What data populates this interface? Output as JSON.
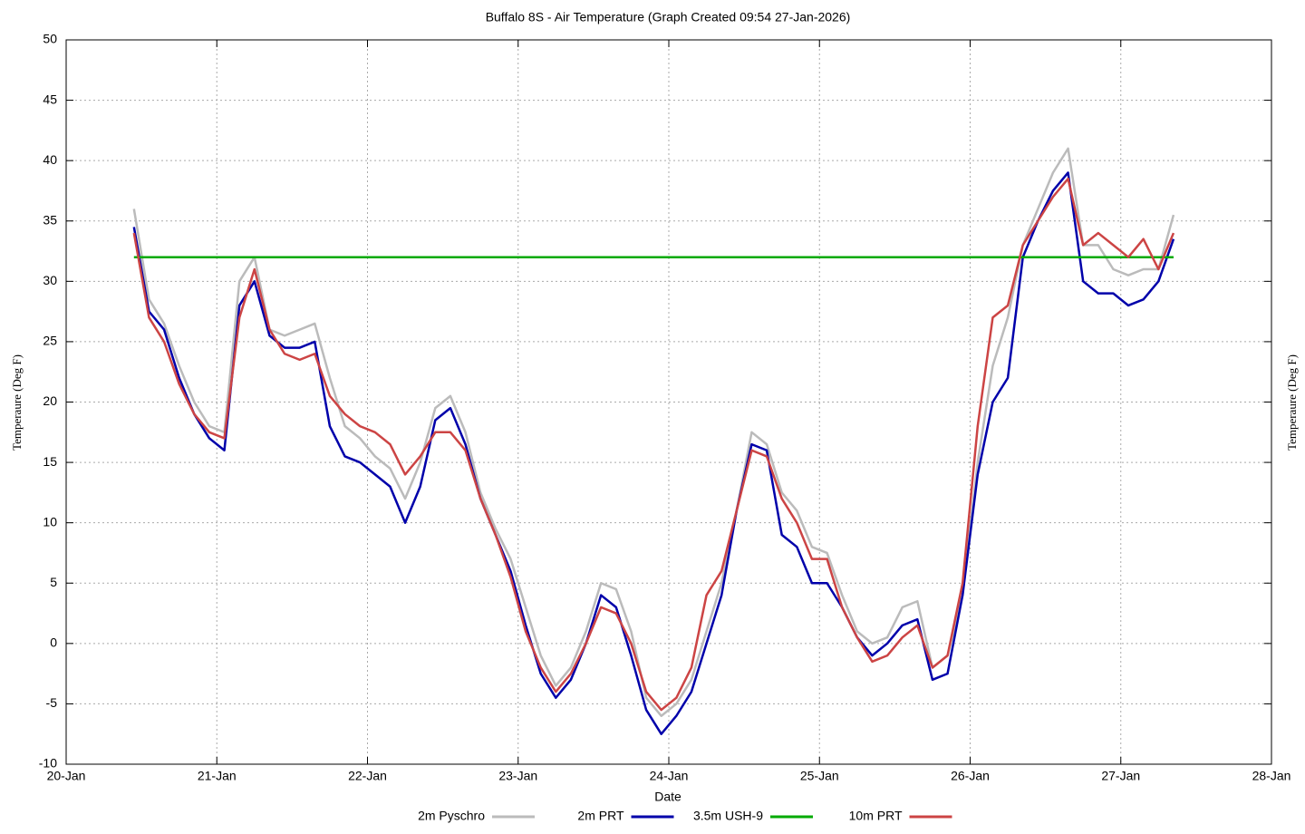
{
  "chart_data": {
    "type": "line",
    "title": "Buffalo 8S - Air Temperature (Graph Created 09:54 27-Jan-2026)",
    "xlabel": "Date",
    "ylabel": "Temperaure (Deg F)",
    "x": [
      20.45,
      20.55,
      20.65,
      20.75,
      20.85,
      20.95,
      21.05,
      21.15,
      21.25,
      21.35,
      21.45,
      21.55,
      21.65,
      21.75,
      21.85,
      21.95,
      22.05,
      22.15,
      22.25,
      22.35,
      22.45,
      22.55,
      22.65,
      22.75,
      22.85,
      22.95,
      23.05,
      23.15,
      23.25,
      23.35,
      23.45,
      23.55,
      23.65,
      23.75,
      23.85,
      23.95,
      24.05,
      24.15,
      24.25,
      24.35,
      24.45,
      24.55,
      24.65,
      24.75,
      24.85,
      24.95,
      25.05,
      25.15,
      25.25,
      25.35,
      25.45,
      25.55,
      25.65,
      25.75,
      25.85,
      25.95,
      26.05,
      26.15,
      26.25,
      26.35,
      26.45,
      26.55,
      26.65,
      26.75,
      26.85,
      26.95,
      27.05,
      27.15,
      27.25,
      27.35
    ],
    "series": [
      {
        "name": "2m Pyschro",
        "color": "#bbbbbb",
        "values": [
          36,
          28.5,
          26.5,
          23,
          20,
          18,
          17.5,
          30,
          32,
          26,
          25.5,
          26,
          26.5,
          22,
          18,
          17,
          15.5,
          14.5,
          12,
          15,
          19.5,
          20.5,
          17.5,
          12.5,
          9.5,
          7,
          3,
          -1,
          -3.5,
          -2,
          1,
          5,
          4.5,
          1,
          -4.5,
          -6,
          -5,
          -3,
          1,
          5,
          11,
          17.5,
          16.5,
          12.5,
          11,
          8,
          7.5,
          4,
          1,
          0,
          0.5,
          3,
          3.5,
          -2,
          -1,
          4,
          15,
          23,
          27,
          33,
          36,
          39,
          41,
          33,
          33,
          31,
          30.5,
          31,
          31,
          35.5
        ]
      },
      {
        "name": "2m PRT",
        "color": "#0000aa",
        "values": [
          34.5,
          27.5,
          26,
          22,
          19,
          17,
          16,
          28,
          30,
          25.5,
          24.5,
          24.5,
          25,
          18,
          15.5,
          15,
          14,
          13,
          10,
          13,
          18.5,
          19.5,
          16.5,
          12,
          9,
          6,
          1.5,
          -2.5,
          -4.5,
          -3,
          0,
          4,
          3,
          -1,
          -5.5,
          -7.5,
          -6,
          -4,
          0,
          4,
          11,
          16.5,
          16,
          9,
          8,
          5,
          5,
          3,
          0.5,
          -1,
          0,
          1.5,
          2,
          -3,
          -2.5,
          4,
          14,
          20,
          22,
          32,
          35,
          37.5,
          39,
          30,
          29,
          29,
          28,
          28.5,
          30,
          33.5
        ]
      },
      {
        "name": "3.5m USH-9",
        "color": "#00aa00",
        "values": [
          32,
          32,
          32,
          32,
          32,
          32,
          32,
          32,
          32,
          32,
          32,
          32,
          32,
          32,
          32,
          32,
          32,
          32,
          32,
          32,
          32,
          32,
          32,
          32,
          32,
          32,
          32,
          32,
          32,
          32,
          32,
          32,
          32,
          32,
          32,
          32,
          32,
          32,
          32,
          32,
          32,
          32,
          32,
          32,
          32,
          32,
          32,
          32,
          32,
          32,
          32,
          32,
          32,
          32,
          32,
          32,
          32,
          32,
          32,
          32,
          32,
          32,
          32,
          32,
          32,
          32,
          32,
          32,
          32,
          32
        ]
      },
      {
        "name": "10m PRT",
        "color": "#cc4444",
        "values": [
          34,
          27,
          25,
          21.5,
          19,
          17.5,
          17,
          27,
          31,
          26,
          24,
          23.5,
          24,
          20.5,
          19,
          18,
          17.5,
          16.5,
          14,
          15.5,
          17.5,
          17.5,
          16,
          12,
          9,
          5.5,
          1,
          -2,
          -4,
          -2.5,
          0,
          3,
          2.5,
          0,
          -4,
          -5.5,
          -4.5,
          -2,
          4,
          6,
          11,
          16,
          15.5,
          12,
          10,
          7,
          7,
          3,
          0.5,
          -1.5,
          -1,
          0.5,
          1.5,
          -2,
          -1,
          5,
          18,
          27,
          28,
          33,
          35,
          37,
          38.5,
          33,
          34,
          33,
          32,
          33.5,
          31,
          34
        ]
      }
    ],
    "xlim": [
      20,
      28
    ],
    "xticks": [
      {
        "value": 20,
        "label": "20-Jan"
      },
      {
        "value": 21,
        "label": "21-Jan"
      },
      {
        "value": 22,
        "label": "22-Jan"
      },
      {
        "value": 23,
        "label": "23-Jan"
      },
      {
        "value": 24,
        "label": "24-Jan"
      },
      {
        "value": 25,
        "label": "25-Jan"
      },
      {
        "value": 26,
        "label": "26-Jan"
      },
      {
        "value": 27,
        "label": "27-Jan"
      },
      {
        "value": 28,
        "label": "28-Jan"
      }
    ],
    "ylim": [
      -10,
      50
    ],
    "yticks": [
      -10,
      -5,
      0,
      5,
      10,
      15,
      20,
      25,
      30,
      35,
      40,
      45,
      50
    ],
    "grid": true,
    "legend": "bottom"
  }
}
